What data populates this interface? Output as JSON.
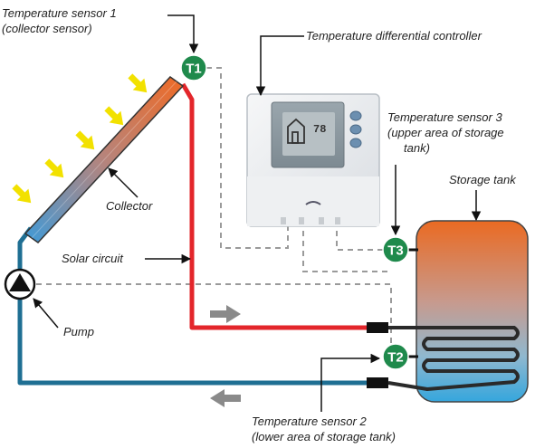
{
  "labels": {
    "t1_line1": "Temperature sensor 1",
    "t1_line2": "(collector sensor)",
    "controller": "Temperature differential controller",
    "t3_line1": "Temperature sensor 3",
    "t3_line2": "(upper area of storage",
    "t3_line3": "tank)",
    "storage_tank": "Storage tank",
    "collector": "Collector",
    "solar_circuit": "Solar circuit",
    "pump": "Pump",
    "t2_line1": "Temperature sensor 2",
    "t2_line2": "(lower area of storage tank)"
  },
  "sensors": {
    "t1": "T1",
    "t2": "T2",
    "t3": "T3"
  },
  "controller_display": {
    "readout": "78"
  },
  "colors": {
    "hot_pipe": "#e3262b",
    "cold_pipe": "#1f6f93",
    "sensor_badge": "#1f8a4c",
    "sun_arrow": "#f2e100",
    "flow_arrow": "#8a8a8a",
    "wire": "#9a9a9a",
    "tank_top": "#e86a2a",
    "tank_bottom": "#3fa9d8"
  },
  "icons": {
    "sun_rays": "sun-ray-arrow-icon",
    "flow_direction": "flow-arrow-icon",
    "pump": "pump-symbol-icon"
  }
}
